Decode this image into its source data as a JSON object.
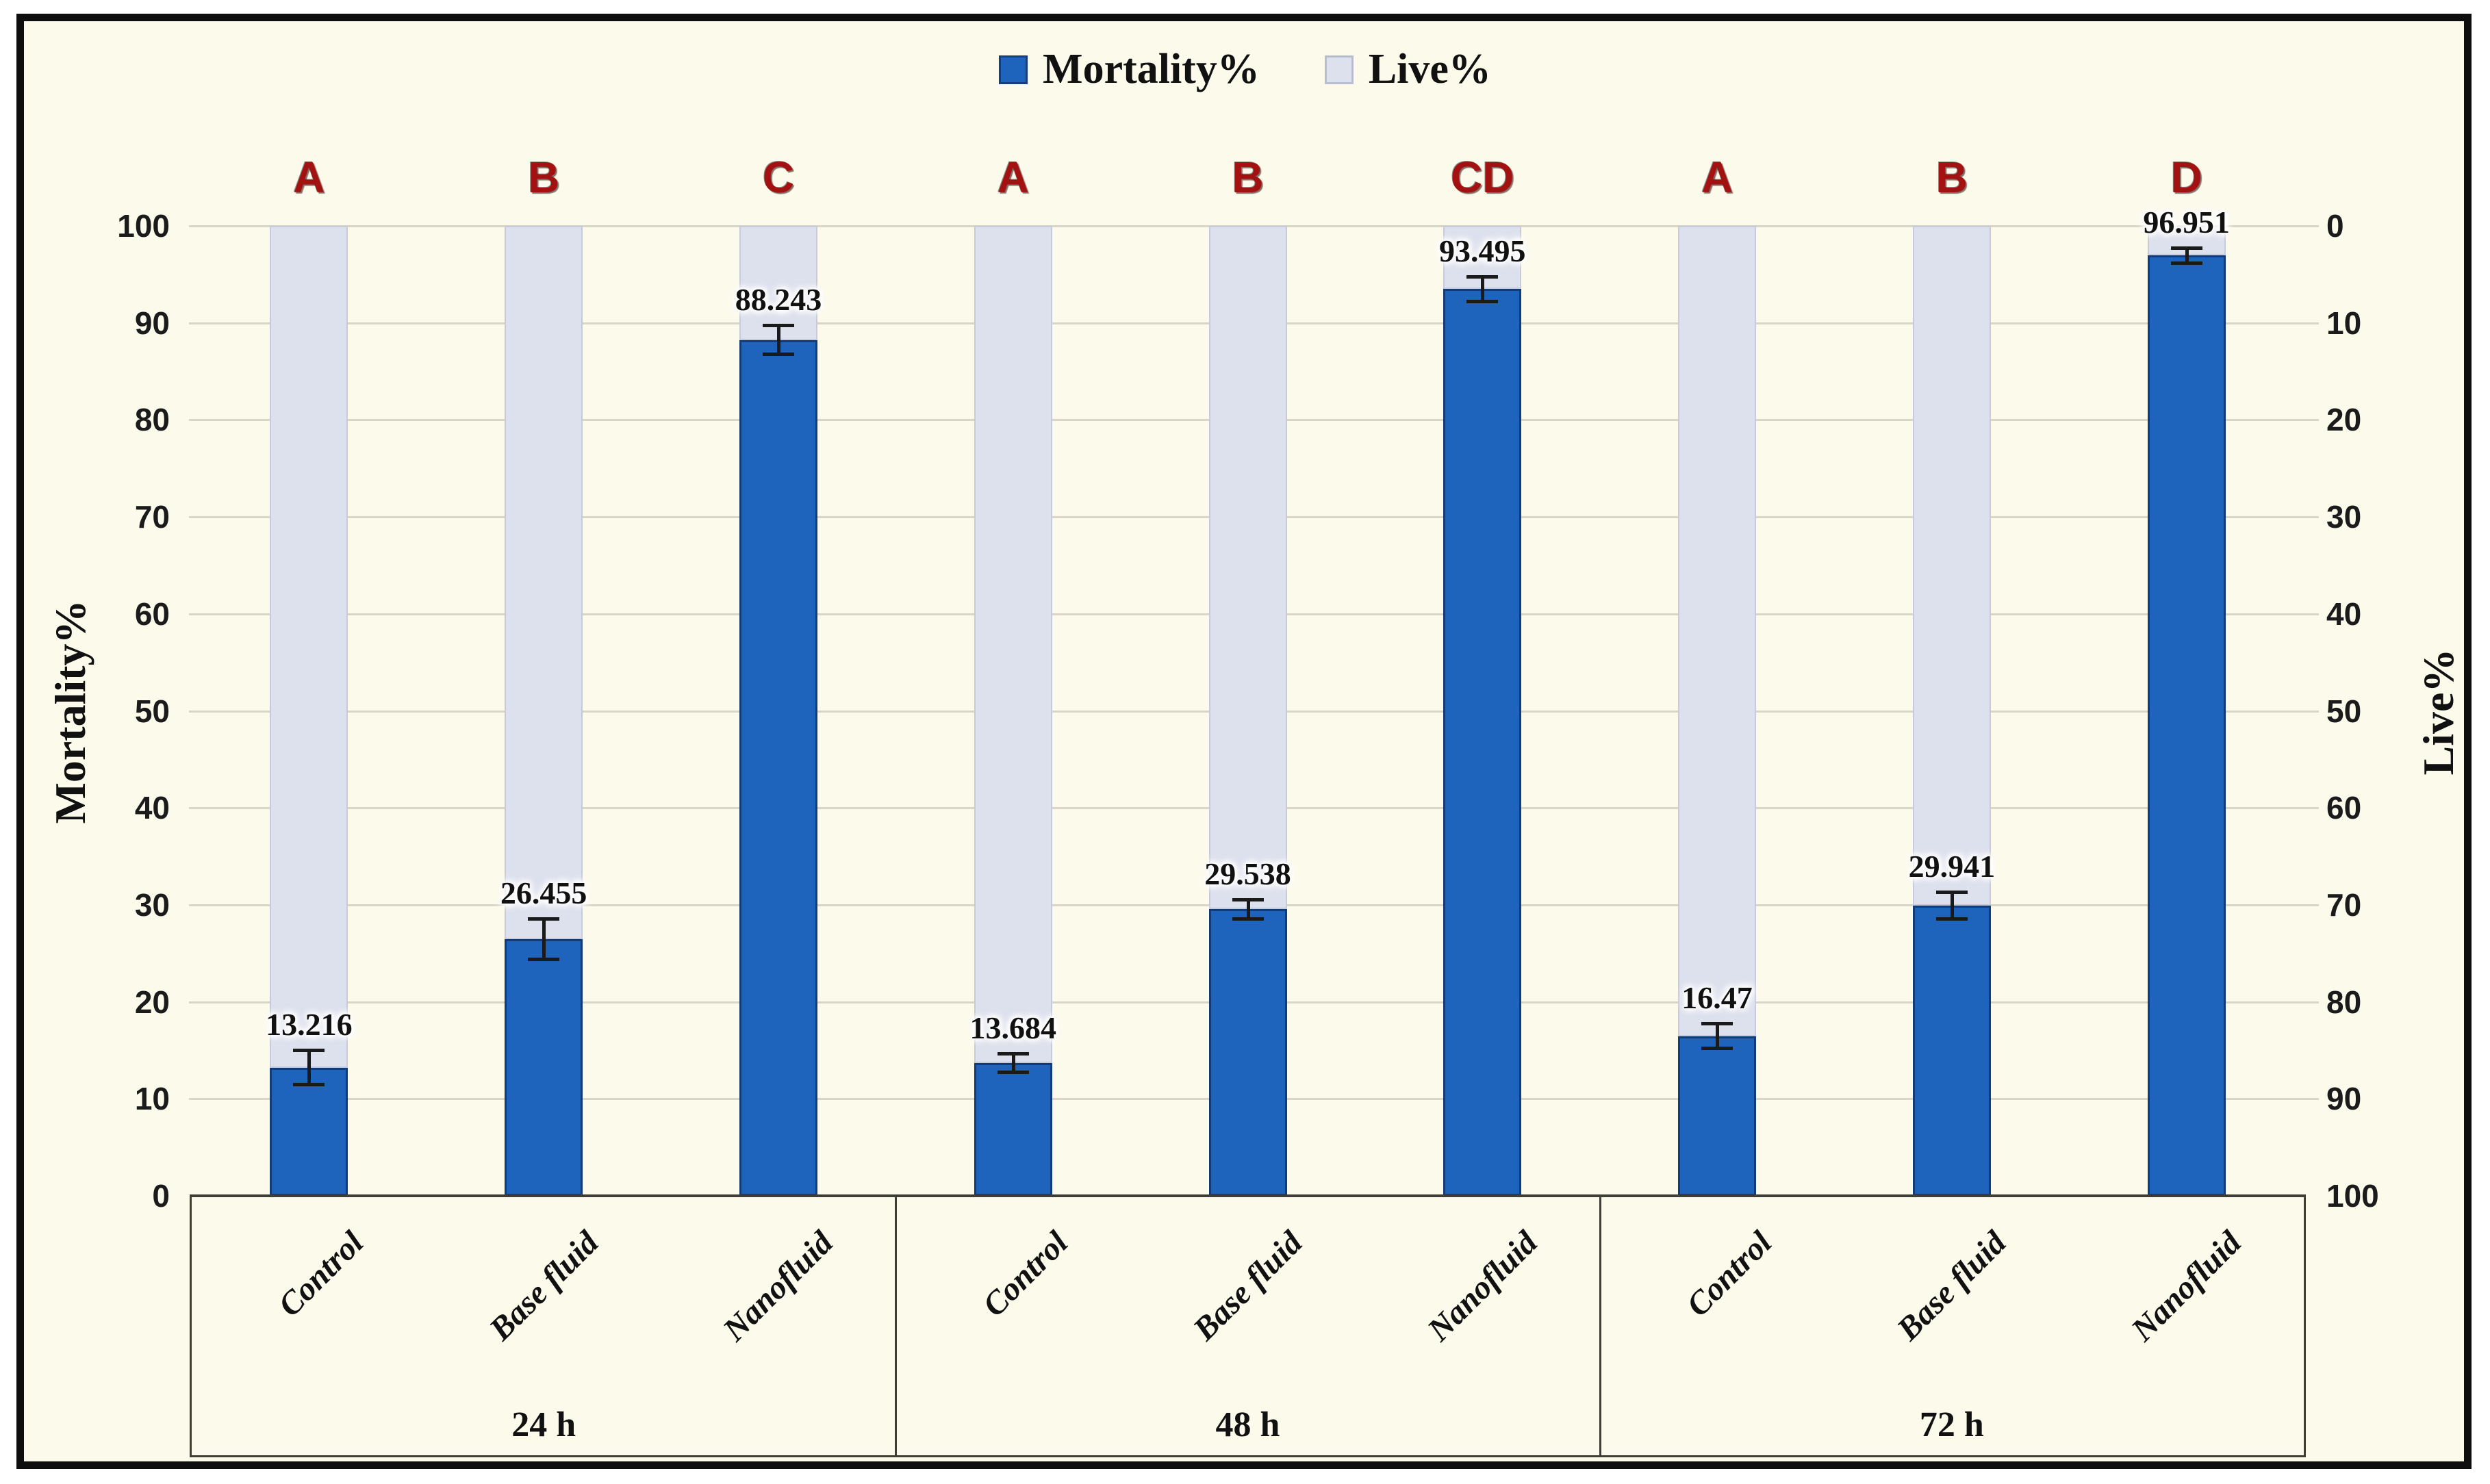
{
  "figure": {
    "background": "#FCFAEB",
    "legend": {
      "items": [
        {
          "label": "Mortality%",
          "color": "#1E63BC",
          "border": "#143E7C"
        },
        {
          "label": "Live%",
          "color": "#DDE1EE",
          "border": "#B9BDD0"
        }
      ]
    },
    "left_axis": {
      "title": "Mortality%",
      "ticks": [
        "100",
        "90",
        "80",
        "70",
        "60",
        "50",
        "40",
        "30",
        "20",
        "10",
        "0"
      ]
    },
    "right_axis": {
      "title": "Live%",
      "ticks": [
        "0",
        "10",
        "20",
        "30",
        "40",
        "50",
        "60",
        "70",
        "80",
        "90",
        "100"
      ]
    }
  },
  "chart_data": {
    "type": "bar",
    "stacked": true,
    "title": "",
    "groups": [
      "24 h",
      "48 h",
      "72 h"
    ],
    "categories": [
      "Control",
      "Base fluid",
      "Nanofluid"
    ],
    "series": [
      {
        "name": "Mortality%",
        "axis": "left",
        "color": "#1E63BC",
        "border_color": "#123C78",
        "values": [
          13.216,
          26.455,
          88.243,
          13.684,
          29.538,
          93.495,
          16.47,
          29.941,
          96.951
        ]
      },
      {
        "name": "Live%",
        "axis": "right",
        "color": "#DDE1EE",
        "border_color": "#C6CADD",
        "values": [
          86.784,
          73.545,
          11.757,
          86.316,
          70.462,
          6.505,
          83.53,
          70.059,
          3.049
        ]
      }
    ],
    "data_labels": [
      "13.216",
      "26.455",
      "88.243",
      "13.684",
      "29.538",
      "93.495",
      "16.47",
      "29.941",
      "96.951"
    ],
    "error_bars": [
      1.8,
      2.1,
      1.5,
      1.0,
      1.0,
      1.3,
      1.3,
      1.4,
      0.8
    ],
    "significance_letters": [
      "A",
      "B",
      "C",
      "A",
      "B",
      "CD",
      "A",
      "B",
      "D"
    ],
    "letter_color": "#A31111",
    "ylabel_left": "Mortality%",
    "ylabel_right": "Live%",
    "ylim_left": [
      0,
      100
    ],
    "ylim_right": [
      0,
      100
    ],
    "right_axis_inverted": true,
    "gridlines": "horizontal every 10",
    "grid_color": "#D9D6C7"
  }
}
